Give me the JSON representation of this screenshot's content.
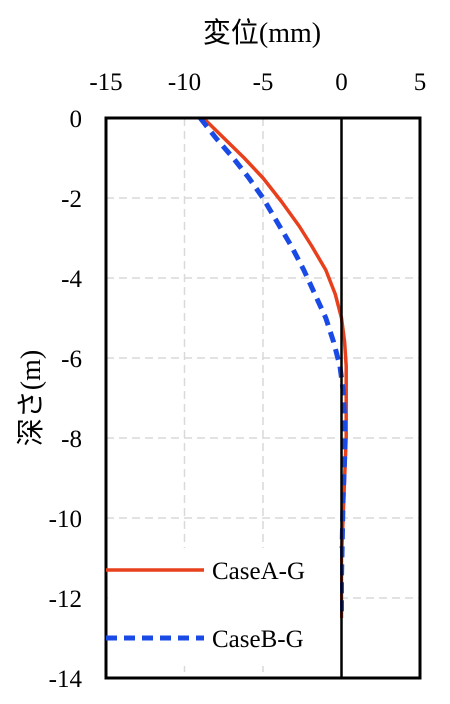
{
  "chart_data": {
    "type": "line",
    "title": "",
    "xlabel": "変位(mm)",
    "ylabel": "深さ(m)",
    "xlim": [
      -15,
      5
    ],
    "ylim": [
      -14,
      0
    ],
    "x_ticks": [
      -15,
      -10,
      -5,
      0,
      5
    ],
    "y_ticks": [
      0,
      -2,
      -4,
      -6,
      -8,
      -10,
      -12,
      -14
    ],
    "x_axis_position": "top",
    "grid": true,
    "legend_position": "bottom-left",
    "series": [
      {
        "name": "CaseA-G",
        "color": "#e8401c",
        "line_style": "solid",
        "points": [
          [
            -8.8,
            0
          ],
          [
            -7.5,
            -0.5
          ],
          [
            -6.2,
            -1.0
          ],
          [
            -5.0,
            -1.5
          ],
          [
            -3.8,
            -2.1
          ],
          [
            -2.7,
            -2.7
          ],
          [
            -1.9,
            -3.2
          ],
          [
            -1.0,
            -3.8
          ],
          [
            -0.4,
            -4.4
          ],
          [
            0.0,
            -5.0
          ],
          [
            0.2,
            -5.6
          ],
          [
            0.3,
            -6.2
          ],
          [
            0.3,
            -7.0
          ],
          [
            0.3,
            -8.0
          ],
          [
            0.2,
            -9.0
          ],
          [
            0.1,
            -10.0
          ],
          [
            0.0,
            -11.0
          ],
          [
            0.0,
            -12.0
          ],
          [
            0.0,
            -12.5
          ]
        ]
      },
      {
        "name": "CaseB-G",
        "color": "#1a4ae6",
        "line_style": "dashed",
        "points": [
          [
            -9.0,
            0
          ],
          [
            -8.0,
            -0.5
          ],
          [
            -6.9,
            -1.0
          ],
          [
            -5.9,
            -1.5
          ],
          [
            -5.0,
            -2.0
          ],
          [
            -4.1,
            -2.6
          ],
          [
            -3.2,
            -3.2
          ],
          [
            -2.4,
            -3.8
          ],
          [
            -1.7,
            -4.4
          ],
          [
            -1.0,
            -5.0
          ],
          [
            -0.5,
            -5.6
          ],
          [
            -0.1,
            -6.2
          ],
          [
            0.1,
            -6.8
          ],
          [
            0.2,
            -7.5
          ],
          [
            0.2,
            -8.5
          ],
          [
            0.1,
            -9.5
          ],
          [
            0.05,
            -10.5
          ],
          [
            0.0,
            -11.5
          ],
          [
            0.0,
            -12.5
          ]
        ]
      }
    ]
  }
}
